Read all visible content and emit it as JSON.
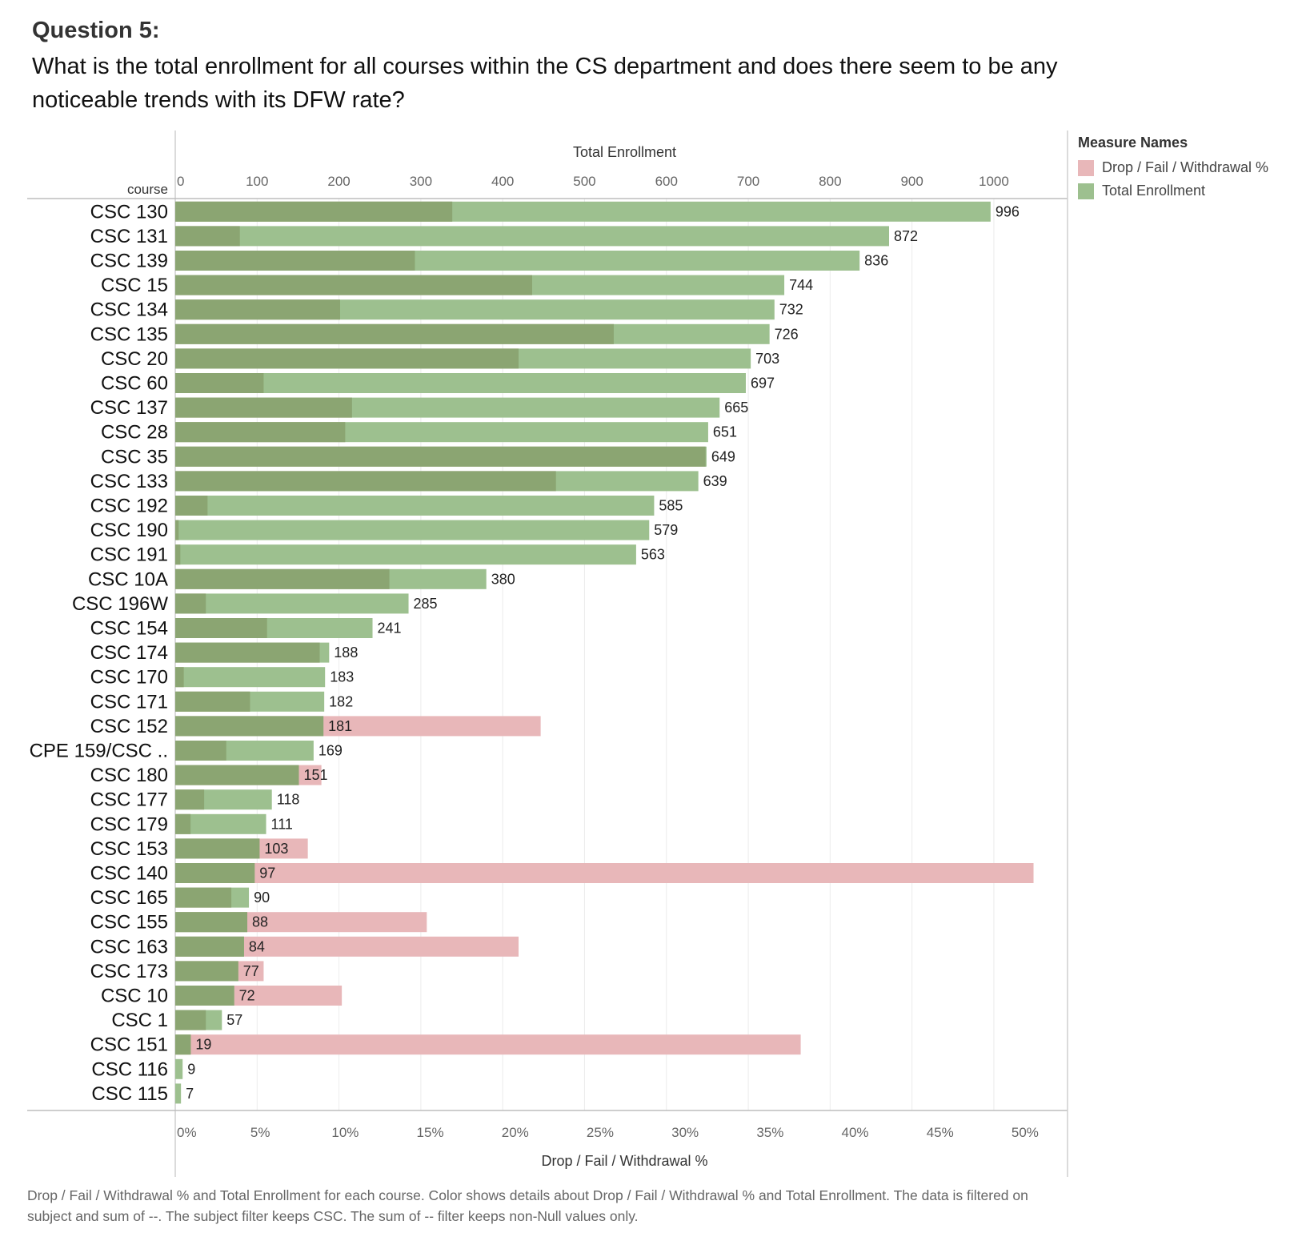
{
  "question": {
    "heading": "Question 5:",
    "text": "What is the total enrollment for all courses within the CS department and does there seem to be any noticeable trends with its DFW rate?"
  },
  "legend": {
    "title": "Measure Names",
    "items": [
      {
        "label": "Drop / Fail / Withdrawal %",
        "color": "#e8b7b9"
      },
      {
        "label": "Total Enrollment",
        "color": "#9dc08f"
      }
    ]
  },
  "caption": "Drop / Fail / Withdrawal % and Total Enrollment for each course.  Color shows details about Drop / Fail / Withdrawal % and Total Enrollment. The data is filtered on subject and sum of --. The subject filter keeps CSC. The sum of -- filter keeps non-Null values only.",
  "chart_data": {
    "type": "bar",
    "orientation": "horizontal",
    "row_header": "course",
    "xlabel_top": "Total Enrollment",
    "xlabel_bottom": "Drop / Fail / Withdrawal %",
    "enrollment_axis": {
      "range": [
        0,
        1090
      ],
      "ticks": [
        0,
        100,
        200,
        300,
        400,
        500,
        600,
        700,
        800,
        900,
        1000
      ]
    },
    "dfw_axis": {
      "range": [
        0,
        52.5
      ],
      "ticks": [
        0,
        5,
        10,
        15,
        20,
        25,
        30,
        35,
        40,
        45,
        50
      ],
      "tick_suffix": "%"
    },
    "colors": {
      "enrollment": "#9dc08f",
      "dfw": "#e8b7b9",
      "overlap": "#8ba572"
    },
    "categories": [
      "CSC 130",
      "CSC 131",
      "CSC 139",
      "CSC 15",
      "CSC 134",
      "CSC 135",
      "CSC 20",
      "CSC 60",
      "CSC 137",
      "CSC 28",
      "CSC 35",
      "CSC 133",
      "CSC 192",
      "CSC 190",
      "CSC 191",
      "CSC 10A",
      "CSC 196W",
      "CSC 154",
      "CSC 174",
      "CSC 170",
      "CSC 171",
      "CSC 152",
      "CPE 159/CSC ..",
      "CSC 180",
      "CSC 177",
      "CSC 179",
      "CSC 153",
      "CSC 140",
      "CSC 165",
      "CSC 155",
      "CSC 163",
      "CSC 173",
      "CSC 10",
      "CSC 1",
      "CSC 151",
      "CSC 116",
      "CSC 115"
    ],
    "series": [
      {
        "name": "Total Enrollment",
        "values": [
          996,
          872,
          836,
          744,
          732,
          726,
          703,
          697,
          665,
          651,
          649,
          639,
          585,
          579,
          563,
          380,
          285,
          241,
          188,
          183,
          182,
          181,
          169,
          151,
          118,
          111,
          103,
          97,
          90,
          88,
          84,
          77,
          72,
          57,
          19,
          9,
          7
        ]
      },
      {
        "name": "Drop / Fail / Withdrawal %",
        "values": [
          16.3,
          3.8,
          14.1,
          21.0,
          9.7,
          25.8,
          20.2,
          5.2,
          10.4,
          10.0,
          31.2,
          22.4,
          1.9,
          0.2,
          0.3,
          12.6,
          1.8,
          5.4,
          8.5,
          0.5,
          4.4,
          21.5,
          3.0,
          8.6,
          1.7,
          0.9,
          7.8,
          50.5,
          3.3,
          14.8,
          20.2,
          5.2,
          9.8,
          1.8,
          36.8,
          0,
          0
        ]
      }
    ]
  }
}
